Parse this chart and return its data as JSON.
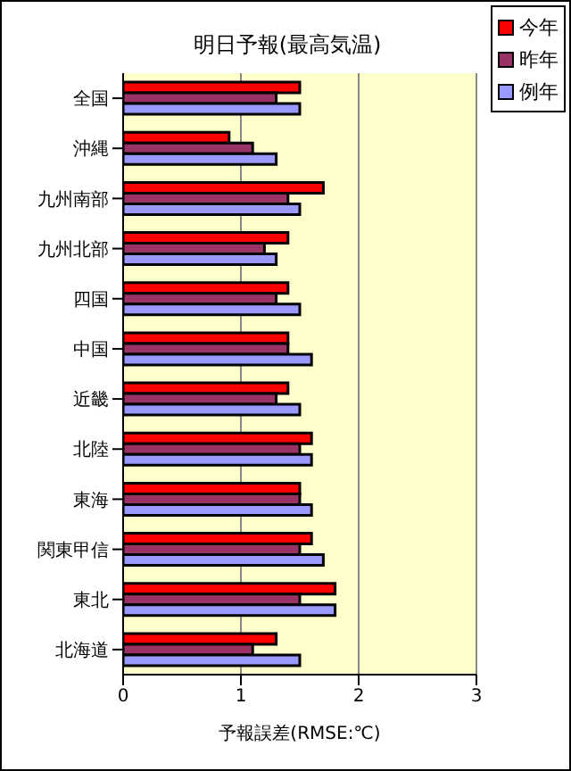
{
  "chart_data": {
    "type": "bar",
    "orientation": "horizontal",
    "title": "明日予報(最高気温)",
    "xlabel": "予報誤差(RMSE:℃)",
    "categories": [
      "全国",
      "沖縄",
      "九州南部",
      "九州北部",
      "四国",
      "中国",
      "近畿",
      "北陸",
      "東海",
      "関東甲信",
      "東北",
      "北海道"
    ],
    "series": [
      {
        "name": "今年",
        "color": "#ff0000",
        "values": [
          1.5,
          0.9,
          1.7,
          1.4,
          1.4,
          1.4,
          1.4,
          1.6,
          1.5,
          1.6,
          1.8,
          1.3
        ]
      },
      {
        "name": "昨年",
        "color": "#993366",
        "values": [
          1.3,
          1.1,
          1.4,
          1.2,
          1.3,
          1.4,
          1.3,
          1.5,
          1.5,
          1.5,
          1.5,
          1.1
        ]
      },
      {
        "name": "例年",
        "color": "#9999ff",
        "values": [
          1.5,
          1.3,
          1.5,
          1.3,
          1.5,
          1.6,
          1.5,
          1.6,
          1.6,
          1.7,
          1.8,
          1.5
        ]
      }
    ],
    "xlim": [
      0,
      3
    ],
    "xticks": [
      0,
      1,
      2,
      3
    ],
    "grid": "x",
    "legend": "top right"
  }
}
